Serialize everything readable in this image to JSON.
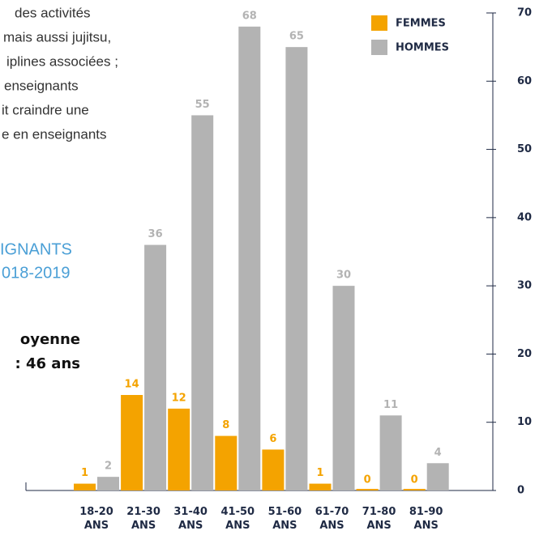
{
  "paragraph": [
    "des activités",
    "mais aussi jujitsu,",
    "iplines associées ;",
    "enseignants",
    "it craindre une",
    "e en enseignants"
  ],
  "heading": [
    "IGNANTS",
    "018-2019"
  ],
  "average": [
    "oyenne",
    ": 46 ans"
  ],
  "chart_data": {
    "type": "bar",
    "categories": [
      "18-20 ANS",
      "21-30 ANS",
      "31-40 ANS",
      "41-50 ANS",
      "51-60 ANS",
      "61-70 ANS",
      "71-80 ANS",
      "81-90 ANS"
    ],
    "series": [
      {
        "name": "FEMMES",
        "color": "#f4a300",
        "values": [
          1,
          14,
          12,
          8,
          6,
          1,
          0,
          0
        ]
      },
      {
        "name": "HOMMES",
        "color": "#b3b3b3",
        "values": [
          2,
          36,
          55,
          68,
          65,
          30,
          11,
          4
        ]
      }
    ],
    "ylim": [
      0,
      70
    ],
    "yticks": [
      0,
      10,
      20,
      30,
      40,
      50,
      60,
      70
    ],
    "legend": "top-right"
  }
}
